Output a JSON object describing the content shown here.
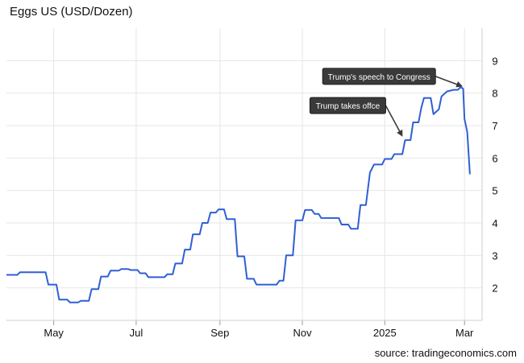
{
  "chart_data": {
    "type": "line",
    "title": "Eggs US (USD/Dozen)",
    "source": "source: tradingeconomics.com",
    "x_start": "2024-03-27",
    "x_end": "2025-03-14",
    "ylim": [
      1.0,
      10.0
    ],
    "y_ticks": [
      2,
      3,
      4,
      5,
      6,
      7,
      8,
      9
    ],
    "x_ticks": [
      {
        "label": "May",
        "date": "2024-05-01"
      },
      {
        "label": "Jul",
        "date": "2024-07-01"
      },
      {
        "label": "Sep",
        "date": "2024-09-01"
      },
      {
        "label": "Nov",
        "date": "2024-11-01"
      },
      {
        "label": "2025",
        "date": "2025-01-01"
      },
      {
        "label": "Mar",
        "date": "2025-03-01"
      }
    ],
    "grid": {
      "horizontal": true,
      "vertical": true
    },
    "line_color": "#2f5fd6",
    "series": [
      {
        "color": "#2f5fd6",
        "points": [
          [
            "2024-03-27",
            2.4
          ],
          [
            "2024-04-04",
            2.4
          ],
          [
            "2024-04-06",
            2.48
          ],
          [
            "2024-04-25",
            2.48
          ],
          [
            "2024-04-27",
            2.1
          ],
          [
            "2024-05-03",
            2.1
          ],
          [
            "2024-05-05",
            1.64
          ],
          [
            "2024-05-11",
            1.64
          ],
          [
            "2024-05-13",
            1.55
          ],
          [
            "2024-05-19",
            1.55
          ],
          [
            "2024-05-21",
            1.6
          ],
          [
            "2024-05-27",
            1.6
          ],
          [
            "2024-05-29",
            1.96
          ],
          [
            "2024-06-03",
            1.96
          ],
          [
            "2024-06-05",
            2.35
          ],
          [
            "2024-06-10",
            2.35
          ],
          [
            "2024-06-12",
            2.53
          ],
          [
            "2024-06-18",
            2.53
          ],
          [
            "2024-06-20",
            2.58
          ],
          [
            "2024-06-25",
            2.58
          ],
          [
            "2024-06-27",
            2.55
          ],
          [
            "2024-07-02",
            2.55
          ],
          [
            "2024-07-04",
            2.45
          ],
          [
            "2024-07-08",
            2.45
          ],
          [
            "2024-07-10",
            2.33
          ],
          [
            "2024-07-22",
            2.33
          ],
          [
            "2024-07-24",
            2.42
          ],
          [
            "2024-07-28",
            2.42
          ],
          [
            "2024-07-30",
            2.75
          ],
          [
            "2024-08-04",
            2.75
          ],
          [
            "2024-08-06",
            3.18
          ],
          [
            "2024-08-10",
            3.18
          ],
          [
            "2024-08-12",
            3.65
          ],
          [
            "2024-08-17",
            3.65
          ],
          [
            "2024-08-19",
            4.0
          ],
          [
            "2024-08-23",
            4.0
          ],
          [
            "2024-08-25",
            4.32
          ],
          [
            "2024-08-29",
            4.32
          ],
          [
            "2024-08-31",
            4.42
          ],
          [
            "2024-09-04",
            4.42
          ],
          [
            "2024-09-06",
            4.12
          ],
          [
            "2024-09-12",
            4.12
          ],
          [
            "2024-09-14",
            2.97
          ],
          [
            "2024-09-19",
            2.97
          ],
          [
            "2024-09-21",
            2.28
          ],
          [
            "2024-09-26",
            2.28
          ],
          [
            "2024-09-28",
            2.1
          ],
          [
            "2024-10-13",
            2.1
          ],
          [
            "2024-10-15",
            2.22
          ],
          [
            "2024-10-18",
            2.22
          ],
          [
            "2024-10-20",
            3.0
          ],
          [
            "2024-10-25",
            3.0
          ],
          [
            "2024-10-27",
            4.08
          ],
          [
            "2024-11-01",
            4.08
          ],
          [
            "2024-11-03",
            4.4
          ],
          [
            "2024-11-08",
            4.4
          ],
          [
            "2024-11-10",
            4.28
          ],
          [
            "2024-11-13",
            4.28
          ],
          [
            "2024-11-15",
            4.15
          ],
          [
            "2024-11-28",
            4.15
          ],
          [
            "2024-11-30",
            3.95
          ],
          [
            "2024-12-05",
            3.95
          ],
          [
            "2024-12-07",
            3.82
          ],
          [
            "2024-12-12",
            3.82
          ],
          [
            "2024-12-14",
            4.55
          ],
          [
            "2024-12-18",
            4.55
          ],
          [
            "2024-12-21",
            5.55
          ],
          [
            "2024-12-24",
            5.8
          ],
          [
            "2024-12-30",
            5.8
          ],
          [
            "2025-01-01",
            5.97
          ],
          [
            "2025-01-06",
            5.97
          ],
          [
            "2025-01-08",
            6.12
          ],
          [
            "2025-01-14",
            6.12
          ],
          [
            "2025-01-16",
            6.55
          ],
          [
            "2025-01-20",
            6.55
          ],
          [
            "2025-01-22",
            7.1
          ],
          [
            "2025-01-26",
            7.1
          ],
          [
            "2025-01-28",
            7.55
          ],
          [
            "2025-01-30",
            7.85
          ],
          [
            "2025-02-04",
            7.85
          ],
          [
            "2025-02-06",
            7.35
          ],
          [
            "2025-02-10",
            7.5
          ],
          [
            "2025-02-12",
            7.9
          ],
          [
            "2025-02-16",
            8.05
          ],
          [
            "2025-02-21",
            8.1
          ],
          [
            "2025-02-24",
            8.1
          ],
          [
            "2025-02-26",
            8.18
          ],
          [
            "2025-02-28",
            8.14
          ],
          [
            "2025-03-01",
            7.2
          ],
          [
            "2025-03-03",
            6.8
          ],
          [
            "2025-03-05",
            5.5
          ]
        ]
      }
    ],
    "annotations": [
      {
        "text": "Trump's speech to Congress",
        "date": "2025-03-01",
        "value": 8.12
      },
      {
        "text": "Trump takes offce",
        "date": "2025-01-16",
        "value": 6.6
      }
    ]
  }
}
